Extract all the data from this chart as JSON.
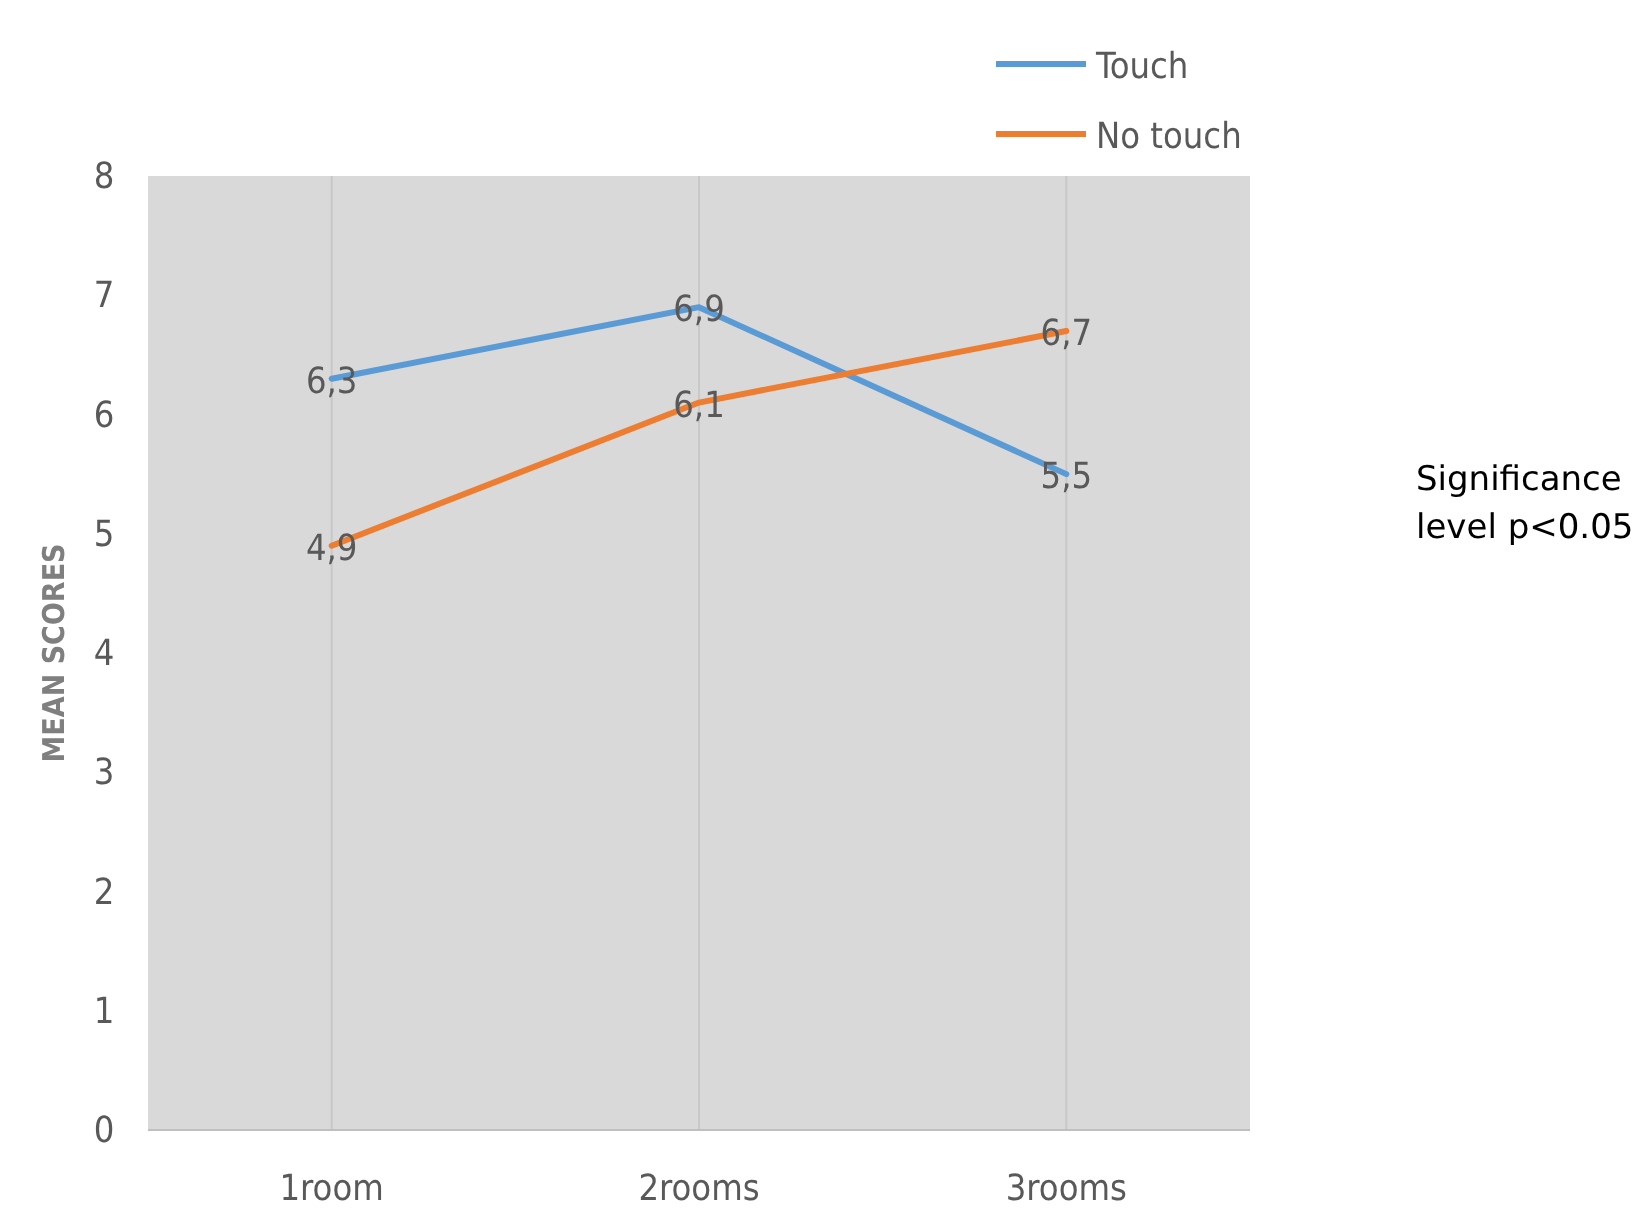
{
  "chart_data": {
    "type": "line",
    "ylabel": "MEAN SCORES",
    "categories": [
      "1room",
      "2rooms",
      "3rooms"
    ],
    "series": [
      {
        "name": "Touch",
        "color": "#5b9bd5",
        "values": [
          6.3,
          6.9,
          5.5
        ],
        "value_labels": [
          "6,3",
          "6,9",
          "5,5"
        ]
      },
      {
        "name": "No touch",
        "color": "#ed7d31",
        "values": [
          4.9,
          6.1,
          6.7
        ],
        "value_labels": [
          "4,9",
          "6,1",
          "6,7"
        ]
      }
    ],
    "ylim": [
      0,
      8
    ],
    "yticks": [
      0,
      1,
      2,
      3,
      4,
      5,
      6,
      7,
      8
    ],
    "grid": "x",
    "legend": "top",
    "marker": "none",
    "line_style": "solid",
    "annotations": [
      "Significance level p<0.05"
    ]
  }
}
